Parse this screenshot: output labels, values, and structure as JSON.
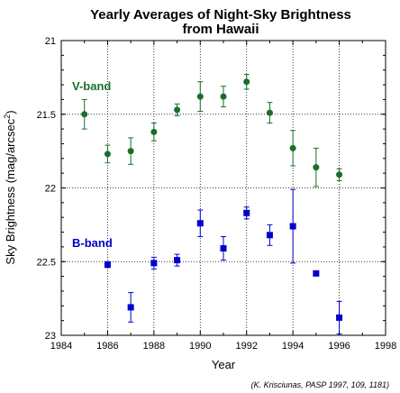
{
  "chart_data": {
    "type": "scatter",
    "title": "Yearly Averages of Night-Sky Brightness",
    "subtitle": "from Hawaii",
    "xlabel": "Year",
    "ylabel": "Sky Brightness (mag/arcsec",
    "ylabel_superscript": "2",
    "ylabel_close": ")",
    "xlim": [
      1984,
      1998
    ],
    "ylim": [
      21,
      23
    ],
    "y_inverted": true,
    "grid": true,
    "x_ticks": [
      "1984",
      "1986",
      "1988",
      "1990",
      "1992",
      "1994",
      "1996",
      "1998"
    ],
    "y_ticks": [
      "21",
      "21.5",
      "22",
      "22.5",
      "23"
    ],
    "credit": "(K. Krisciunas, PASP 1997, 109, 1181)",
    "series": [
      {
        "name": "V-band",
        "color": "#1a6e2a",
        "marker": "circle",
        "points": [
          {
            "x": 1985,
            "y": 21.5,
            "err": 0.1
          },
          {
            "x": 1986,
            "y": 21.77,
            "err": 0.06
          },
          {
            "x": 1987,
            "y": 21.75,
            "err": 0.09
          },
          {
            "x": 1988,
            "y": 21.62,
            "err": 0.06
          },
          {
            "x": 1989,
            "y": 21.47,
            "err": 0.04
          },
          {
            "x": 1990,
            "y": 21.38,
            "err": 0.1
          },
          {
            "x": 1991,
            "y": 21.38,
            "err": 0.07
          },
          {
            "x": 1992,
            "y": 21.28,
            "err": 0.05
          },
          {
            "x": 1993,
            "y": 21.49,
            "err": 0.07
          },
          {
            "x": 1994,
            "y": 21.73,
            "err": 0.12
          },
          {
            "x": 1995,
            "y": 21.86,
            "err": 0.13
          },
          {
            "x": 1996,
            "y": 21.91,
            "err": 0.04
          }
        ]
      },
      {
        "name": "B-band",
        "color": "#0000cc",
        "marker": "square",
        "points": [
          {
            "x": 1986,
            "y": 22.52,
            "err": 0.02
          },
          {
            "x": 1987,
            "y": 22.81,
            "err": 0.1
          },
          {
            "x": 1988,
            "y": 22.51,
            "err": 0.04
          },
          {
            "x": 1989,
            "y": 22.49,
            "err": 0.04
          },
          {
            "x": 1990,
            "y": 22.24,
            "err": 0.09
          },
          {
            "x": 1991,
            "y": 22.41,
            "err": 0.08
          },
          {
            "x": 1992,
            "y": 22.17,
            "err": 0.04
          },
          {
            "x": 1993,
            "y": 22.32,
            "err": 0.07
          },
          {
            "x": 1994,
            "y": 22.26,
            "err": 0.25
          },
          {
            "x": 1995,
            "y": 22.58,
            "err": 0.0
          },
          {
            "x": 1996,
            "y": 22.88,
            "err": 0.11
          }
        ]
      }
    ]
  }
}
